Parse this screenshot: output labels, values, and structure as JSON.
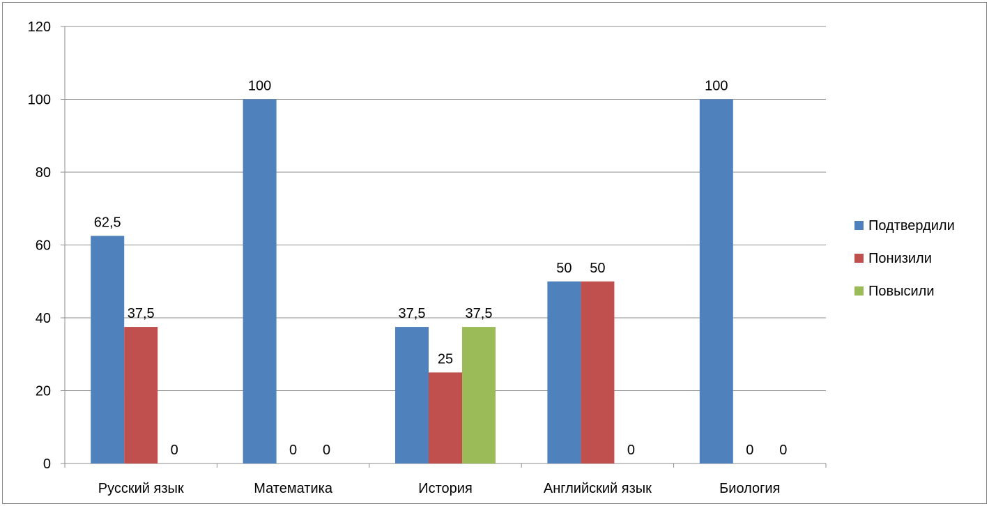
{
  "chart_data": {
    "type": "bar",
    "title": "",
    "xlabel": "",
    "ylabel": "",
    "ylim": [
      0,
      120
    ],
    "yticks": [
      "0",
      "20",
      "40",
      "60",
      "80",
      "100",
      "120"
    ],
    "grid": true,
    "legend_position": "right",
    "categories": [
      "Русский язык",
      "Математика",
      "История",
      "Английский язык",
      "Биология"
    ],
    "series": [
      {
        "name": "Подтвердили",
        "color": "#4f81bd",
        "values": [
          62.5,
          100,
          37.5,
          50,
          100
        ],
        "labels": [
          "62,5",
          "100",
          "37,5",
          "50",
          "100"
        ]
      },
      {
        "name": "Понизили",
        "color": "#c0504d",
        "values": [
          37.5,
          0,
          25,
          50,
          0
        ],
        "labels": [
          "37,5",
          "0",
          "25",
          "50",
          "0"
        ]
      },
      {
        "name": "Повысили",
        "color": "#9bbb59",
        "values": [
          0,
          0,
          37.5,
          0,
          0
        ],
        "labels": [
          "0",
          "0",
          "37,5",
          "0",
          "0"
        ]
      }
    ]
  }
}
